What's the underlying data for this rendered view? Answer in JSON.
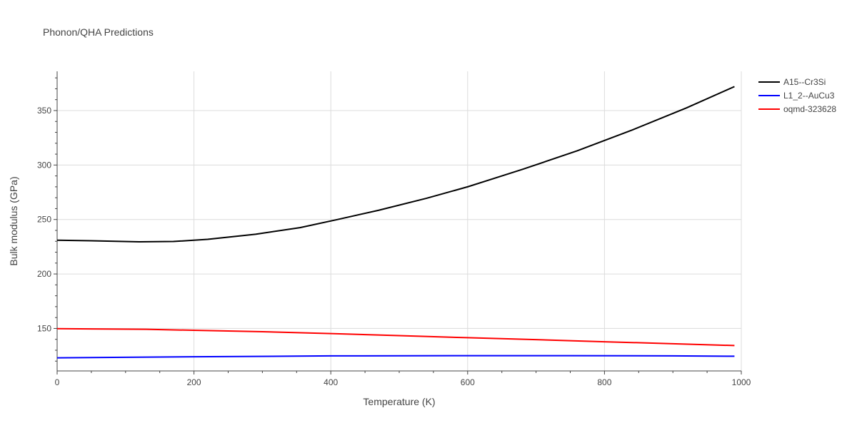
{
  "chart_data": {
    "type": "line",
    "title": "Phonon/QHA Predictions",
    "xlabel": "Temperature (K)",
    "ylabel": "Bulk modulus (GPa)",
    "xlim": [
      0,
      1000
    ],
    "ylim": [
      111,
      386
    ],
    "x_ticks": [
      0,
      200,
      400,
      600,
      800,
      1000
    ],
    "y_ticks": [
      150,
      200,
      250,
      300,
      350
    ],
    "grid": true,
    "legend_position": "top-right",
    "series": [
      {
        "name": "A15--Cr3Si",
        "color": "#000000",
        "x": [
          0,
          50,
          120,
          170,
          220,
          290,
          355,
          410,
          470,
          540,
          600,
          680,
          760,
          840,
          920,
          990
        ],
        "y": [
          231,
          230.5,
          229.5,
          229.8,
          231.8,
          236.5,
          242.5,
          250,
          258.5,
          269.5,
          280,
          296,
          313,
          332,
          352.5,
          372
        ]
      },
      {
        "name": "L1_2--AuCu3",
        "color": "#0000ff",
        "x": [
          0,
          200,
          400,
          600,
          750,
          900,
          990
        ],
        "y": [
          123,
          124,
          124.8,
          125,
          125,
          124.8,
          124.5
        ]
      },
      {
        "name": "oqmd-323628",
        "color": "#ff0000",
        "x": [
          0,
          130,
          200,
          300,
          400,
          500,
          600,
          700,
          800,
          900,
          990
        ],
        "y": [
          149.8,
          149.2,
          148.3,
          147,
          145.3,
          143.4,
          141.5,
          139.7,
          137.8,
          136,
          134.3
        ]
      }
    ]
  }
}
